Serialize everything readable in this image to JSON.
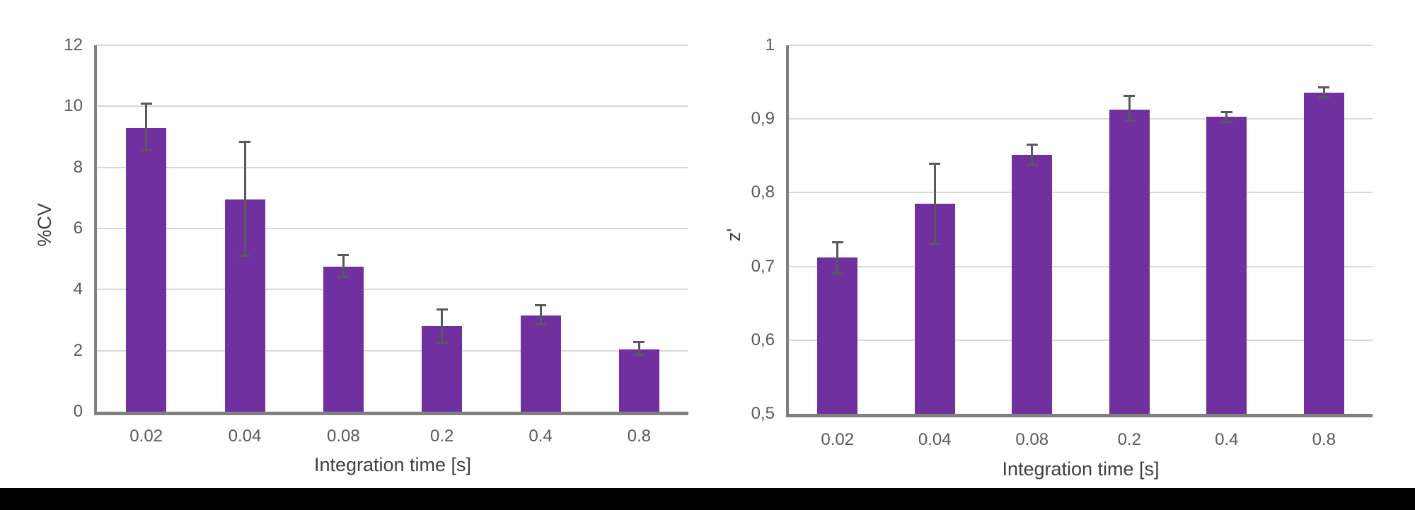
{
  "page": {
    "background": "#FFFFFF",
    "footer_bar_color": "#000000"
  },
  "chart_data": [
    {
      "type": "bar",
      "title": "",
      "xlabel": "Integration time [s]",
      "ylabel": "%CV",
      "categories": [
        "0.02",
        "0.04",
        "0.08",
        "0.2",
        "0.4",
        "0.8"
      ],
      "values": [
        9.3,
        6.95,
        4.75,
        2.8,
        3.15,
        2.05
      ],
      "error_high": [
        10.1,
        8.85,
        5.15,
        3.35,
        3.5,
        2.3
      ],
      "error_low": [
        8.55,
        5.1,
        4.4,
        2.25,
        2.85,
        1.85
      ],
      "ylim": [
        0,
        12
      ],
      "yticks": [
        {
          "value": 0,
          "label": "0"
        },
        {
          "value": 2,
          "label": "2"
        },
        {
          "value": 4,
          "label": "4"
        },
        {
          "value": 6,
          "label": "6"
        },
        {
          "value": 8,
          "label": "8"
        },
        {
          "value": 10,
          "label": "10"
        },
        {
          "value": 12,
          "label": "12"
        }
      ],
      "grid": true,
      "legend": false,
      "bar_color": "#7030A0",
      "error_color": "#595959",
      "axis_color": "#808080",
      "gridline_color": "#D9D9D9"
    },
    {
      "type": "bar",
      "title": "",
      "xlabel": "Integration time [s]",
      "ylabel": "z'",
      "categories": [
        "0.02",
        "0.04",
        "0.08",
        "0.2",
        "0.4",
        "0.8"
      ],
      "values": [
        0.712,
        0.785,
        0.851,
        0.913,
        0.903,
        0.936
      ],
      "error_high": [
        0.733,
        0.84,
        0.866,
        0.932,
        0.91,
        0.943
      ],
      "error_low": [
        0.69,
        0.73,
        0.838,
        0.897,
        0.895,
        0.929
      ],
      "ylim": [
        0.5,
        1.0
      ],
      "yticks": [
        {
          "value": 0.5,
          "label": "0,5"
        },
        {
          "value": 0.6,
          "label": "0,6"
        },
        {
          "value": 0.7,
          "label": "0,7"
        },
        {
          "value": 0.8,
          "label": "0,8"
        },
        {
          "value": 0.9,
          "label": "0,9"
        },
        {
          "value": 1.0,
          "label": "1"
        }
      ],
      "grid": true,
      "legend": false,
      "bar_color": "#7030A0",
      "error_color": "#595959",
      "axis_color": "#808080",
      "gridline_color": "#D9D9D9"
    }
  ]
}
